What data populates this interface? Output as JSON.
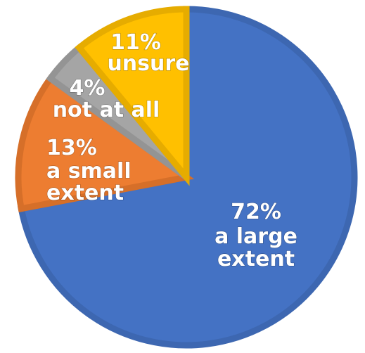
{
  "chart_data": {
    "type": "pie",
    "title": "",
    "start": "top",
    "direction": "clockwise",
    "slices": [
      {
        "key": "large",
        "pct_label": "72%",
        "label_lines": [
          "a large",
          "extent"
        ],
        "value": 72,
        "color": "#4472C4",
        "border": "#3d67b1"
      },
      {
        "key": "small",
        "pct_label": "13%",
        "label_lines": [
          "a small",
          "extent"
        ],
        "value": 13,
        "color": "#ED7D31",
        "border": "#d66f29"
      },
      {
        "key": "notatall",
        "pct_label": "4%",
        "label_lines": [
          "not at all"
        ],
        "value": 4,
        "color": "#A5A5A5",
        "border": "#949494"
      },
      {
        "key": "unsure",
        "pct_label": "11%",
        "label_lines": [
          "unsure"
        ],
        "value": 11,
        "color": "#FFC000",
        "border": "#e6ac00"
      }
    ]
  }
}
